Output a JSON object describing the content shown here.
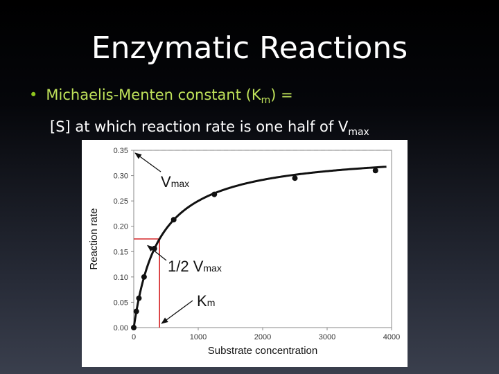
{
  "slide": {
    "title": "Enzymatic Reactions",
    "bullet_1": {
      "prefix": "Michaelis-Menten constant (K",
      "sub": "m",
      "suffix": ") ="
    },
    "bullet_1_continuation": {
      "text": "[S] at which reaction rate is one half of  V",
      "sub": "max"
    }
  },
  "chart_data": {
    "type": "line",
    "xlabel": "Substrate concentration",
    "ylabel": "Reaction rate",
    "xlim": [
      0,
      4000
    ],
    "ylim": [
      0,
      0.35
    ],
    "xticks": [
      0,
      1000,
      2000,
      3000,
      4000
    ],
    "yticks": [
      "0.00",
      "0.05",
      "0.10",
      "0.15",
      "0.20",
      "0.25",
      "0.30",
      "0.35"
    ],
    "vmax": 0.35,
    "km": 400,
    "points": [
      {
        "x": 0,
        "y": 0.0
      },
      {
        "x": 40,
        "y": 0.032
      },
      {
        "x": 80,
        "y": 0.058
      },
      {
        "x": 160,
        "y": 0.1
      },
      {
        "x": 320,
        "y": 0.156
      },
      {
        "x": 620,
        "y": 0.213
      },
      {
        "x": 1250,
        "y": 0.263
      },
      {
        "x": 2500,
        "y": 0.295
      },
      {
        "x": 3750,
        "y": 0.31
      }
    ],
    "annotations": {
      "vmax": {
        "main": "V",
        "sub": "max"
      },
      "half_vmax": {
        "main": "1/2 V",
        "sub": "max"
      },
      "km": {
        "main": "K",
        "sub": "m"
      }
    },
    "colors": {
      "curve": "#111111",
      "guide": "#d62728",
      "asymptote": "#999999"
    },
    "grid": false
  }
}
